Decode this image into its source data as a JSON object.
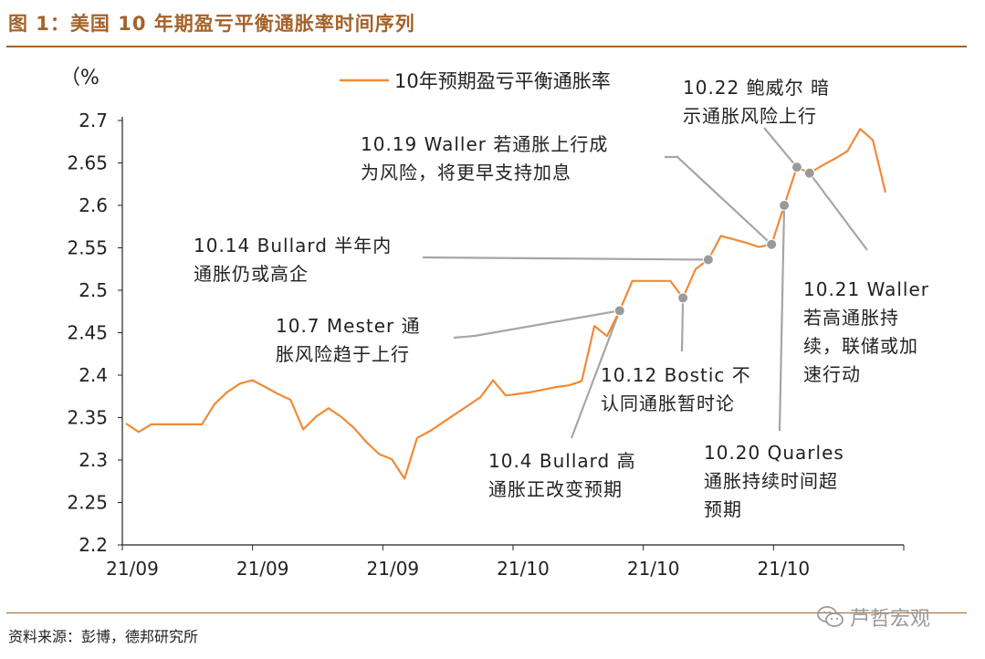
{
  "figure": {
    "title": "图 1：美国 10 年期盈亏平衡通胀率时间序列",
    "source": "资料来源：彭博，德邦研究所",
    "watermark": "芦哲宏观"
  },
  "colors": {
    "accent": "#a4622a",
    "line": "#f08a36",
    "annotation": "#a6a6a6",
    "marker": "#9a9a9a"
  },
  "icons": {
    "watermark": "wechat-icon"
  },
  "chart_data": {
    "type": "line",
    "unit_label": "（%",
    "ylim": [
      2.2,
      2.7
    ],
    "yticks": [
      "2.2",
      "2.25",
      "2.3",
      "2.35",
      "2.4",
      "2.45",
      "2.5",
      "2.55",
      "2.6",
      "2.65",
      "2.7"
    ],
    "xtick_labels": [
      "21/09",
      "21/09",
      "21/09",
      "21/10",
      "21/10",
      "21/10"
    ],
    "grid": false,
    "legend_position": "top",
    "series": [
      {
        "name": "10年预期盈亏平衡通胀率",
        "values": [
          2.343,
          2.333,
          2.342,
          2.342,
          2.342,
          2.342,
          2.342,
          2.366,
          2.38,
          2.39,
          2.394,
          2.386,
          2.378,
          2.371,
          2.336,
          2.351,
          2.361,
          2.351,
          2.338,
          2.321,
          2.307,
          2.301,
          2.278,
          2.326,
          2.334,
          2.344,
          2.354,
          2.364,
          2.374,
          2.394,
          2.376,
          2.378,
          2.38,
          2.383,
          2.386,
          2.388,
          2.393,
          2.458,
          2.446,
          2.476,
          2.511,
          2.511,
          2.511,
          2.511,
          2.491,
          2.525,
          2.536,
          2.564,
          2.56,
          2.556,
          2.551,
          2.554,
          2.6,
          2.645,
          2.638,
          2.647,
          2.655,
          2.664,
          2.69,
          2.677,
          2.615
        ]
      }
    ],
    "annotations": [
      {
        "lines": [
          "10.4 Bullard 高",
          "通胀正改变预期"
        ]
      },
      {
        "lines": [
          "10.7 Mester 通",
          "胀风险趋于上行"
        ]
      },
      {
        "lines": [
          "10.12 Bostic 不",
          "认同通胀暂时论"
        ]
      },
      {
        "lines": [
          "10.14 Bullard 半年内",
          "通胀仍或高企"
        ]
      },
      {
        "lines": [
          "10.19 Waller 若通胀上行成",
          "为风险，将更早支持加息"
        ]
      },
      {
        "lines": [
          "10.20 Quarles",
          "通胀持续时间超",
          "预期"
        ]
      },
      {
        "lines": [
          "10.21 Waller",
          "若高通胀持",
          "续，联储或加",
          "速行动"
        ]
      },
      {
        "lines": [
          "10.22 鲍威尔 暗",
          "示通胀风险上行"
        ]
      }
    ]
  }
}
